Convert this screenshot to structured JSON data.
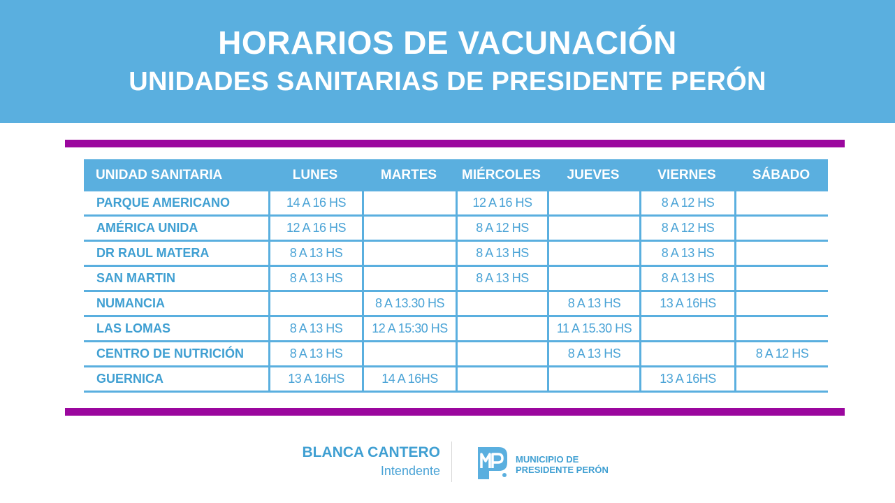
{
  "header": {
    "title": "HORARIOS DE VACUNACIÓN",
    "subtitle": "UNIDADES SANITARIAS DE PRESIDENTE PERÓN"
  },
  "table": {
    "columns": [
      "UNIDAD SANITARIA",
      "LUNES",
      "MARTES",
      "MIÉRCOLES",
      "JUEVES",
      "VIERNES",
      "SÁBADO"
    ],
    "rows": [
      [
        "PARQUE AMERICANO",
        "14 A 16 HS",
        "",
        "12 A 16 HS",
        "",
        "8 A 12 HS",
        ""
      ],
      [
        "AMÉRICA UNIDA",
        "12 A 16 HS",
        "",
        "8 A 12 HS",
        "",
        "8 A 12 HS",
        ""
      ],
      [
        "DR RAUL MATERA",
        "8 A 13 HS",
        "",
        "8 A 13 HS",
        "",
        "8 A 13 HS",
        ""
      ],
      [
        "SAN MARTIN",
        "8 A 13 HS",
        "",
        "8 A 13 HS",
        "",
        "8 A 13 HS",
        ""
      ],
      [
        "NUMANCIA",
        "",
        "8 A 13.30 HS",
        "",
        "8 A 13 HS",
        "13 A 16HS",
        ""
      ],
      [
        "LAS LOMAS",
        "8 A 13 HS",
        "12 A 15:30 HS",
        "",
        "11 A 15.30 HS",
        "",
        ""
      ],
      [
        "CENTRO DE NUTRICIÓN",
        "8 A 13 HS",
        "",
        "",
        "8 A 13 HS",
        "",
        "8 A 12 HS"
      ],
      [
        "GUERNICA",
        "13 A 16HS",
        "14 A 16HS",
        "",
        "",
        "13 A 16HS",
        ""
      ]
    ]
  },
  "footer": {
    "name": "BLANCA CANTERO",
    "role": "Intendente",
    "logo_line1": "MUNICIPIO DE",
    "logo_line2": "PRESIDENTE PERÓN"
  },
  "colors": {
    "banner": "#5aafdf",
    "accent_rule": "#9b079e",
    "text_blue": "#3f9fd2"
  }
}
